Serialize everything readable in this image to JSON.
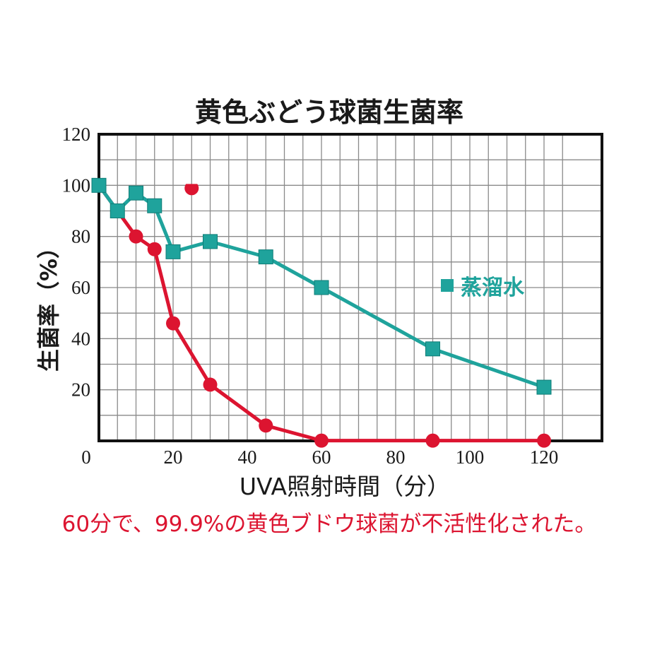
{
  "chart_data": {
    "type": "line",
    "title": "黄色ぶどう球菌生菌率",
    "xlabel": "UVA照射時間（分）",
    "ylabel": "生菌率（%）",
    "xlim": [
      0,
      130
    ],
    "ylim": [
      0,
      120
    ],
    "x_ticks": [
      0,
      20,
      40,
      60,
      80,
      100,
      120
    ],
    "y_ticks": [
      20,
      40,
      60,
      80,
      100,
      120
    ],
    "grid": true,
    "series": [
      {
        "name": "蒸溜水",
        "marker": "square",
        "color": "#1fa39c",
        "x": [
          0,
          5,
          10,
          15,
          20,
          30,
          45,
          60,
          90,
          120
        ],
        "y": [
          100,
          90,
          97,
          92,
          74,
          78,
          72,
          60,
          36,
          21
        ]
      },
      {
        "name": "",
        "marker": "circle",
        "color": "#dc1430",
        "x": [
          0,
          5,
          10,
          15,
          20,
          30,
          45,
          60,
          90,
          120
        ],
        "y": [
          100,
          90,
          80,
          75,
          46,
          22,
          6,
          0.1,
          0.1,
          0.1
        ]
      }
    ],
    "floating_marker": {
      "marker": "circle",
      "color": "#dc1430",
      "x": 25,
      "y": 100
    },
    "legend": {
      "position": "right",
      "marker": "square",
      "label": "蒸溜水",
      "color": "#1fa39c"
    }
  },
  "caption": {
    "text": "60分で、99.9%の黄色ブドウ球菌が不活性化された。",
    "color": "#dc1430"
  }
}
